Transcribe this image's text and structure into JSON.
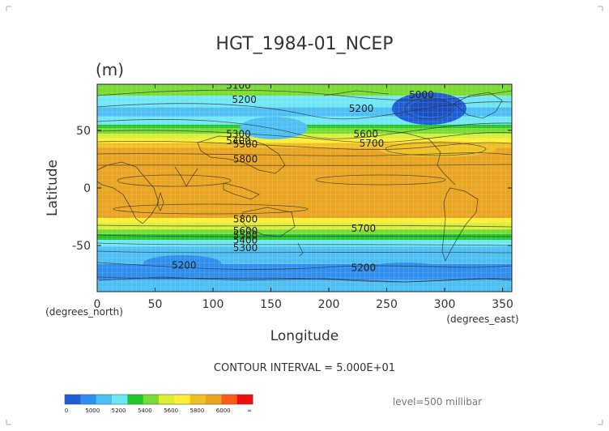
{
  "chart_data": {
    "type": "heatmap",
    "title": "HGT_1984-01_NCEP",
    "units_label": "(m)",
    "xlabel": "Longitude",
    "ylabel": "Latitude",
    "x_axis_note": "(degrees_east)",
    "y_axis_note": "(degrees_north)",
    "xlim": [
      0,
      358
    ],
    "ylim": [
      -90,
      90
    ],
    "x_ticks": [
      0,
      50,
      100,
      150,
      200,
      250,
      300,
      350
    ],
    "y_ticks": [
      -50,
      0,
      50
    ],
    "contour_interval_text": "CONTOUR INTERVAL = 5.000E+01",
    "level_text": "level=500 millibar",
    "grid": true,
    "contour_labels": [
      {
        "text": "5100",
        "lon": 122,
        "lat": 86
      },
      {
        "text": "5200",
        "lon": 127,
        "lat": 74
      },
      {
        "text": "5200",
        "lon": 228,
        "lat": 66
      },
      {
        "text": "5000",
        "lon": 280,
        "lat": 78
      },
      {
        "text": "5300",
        "lon": 122,
        "lat": 44
      },
      {
        "text": "5400",
        "lon": 122,
        "lat": 38
      },
      {
        "text": "5500",
        "lon": 128,
        "lat": 35
      },
      {
        "text": "5600",
        "lon": 232,
        "lat": 44
      },
      {
        "text": "5700",
        "lon": 237,
        "lat": 36
      },
      {
        "text": "5800",
        "lon": 128,
        "lat": 22
      },
      {
        "text": "5800",
        "lon": 128,
        "lat": -30
      },
      {
        "text": "5700",
        "lon": 230,
        "lat": -38
      },
      {
        "text": "5600",
        "lon": 128,
        "lat": -40
      },
      {
        "text": "5500",
        "lon": 128,
        "lat": -44
      },
      {
        "text": "5400",
        "lon": 128,
        "lat": -48
      },
      {
        "text": "5300",
        "lon": 128,
        "lat": -55
      },
      {
        "text": "5200",
        "lon": 75,
        "lat": -70
      },
      {
        "text": "5200",
        "lon": 230,
        "lat": -72
      }
    ],
    "colorbar": {
      "labels": [
        "0",
        "5000",
        "5200",
        "5400",
        "5600",
        "5800",
        "6000",
        "∞"
      ],
      "colors": [
        "#1e5fd8",
        "#2f8ff0",
        "#4cc0f5",
        "#6fe8f5",
        "#22c82a",
        "#79dc32",
        "#d9ee35",
        "#ffee33",
        "#f0c020",
        "#eaa520",
        "#ff5a1a",
        "#ee1010"
      ]
    }
  }
}
